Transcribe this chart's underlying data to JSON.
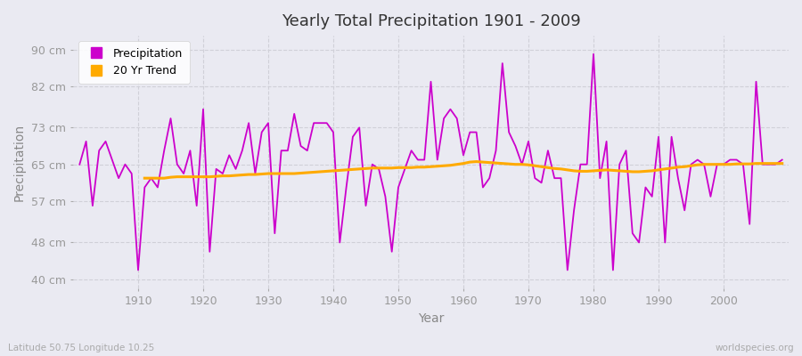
{
  "title": "Yearly Total Precipitation 1901 - 2009",
  "xlabel": "Year",
  "ylabel": "Precipitation",
  "subtitle_left": "Latitude 50.75 Longitude 10.25",
  "subtitle_right": "worldspecies.org",
  "ylim": [
    38,
    93
  ],
  "yticks": [
    40,
    48,
    57,
    65,
    73,
    82,
    90
  ],
  "ytick_labels": [
    "40 cm",
    "48 cm",
    "57 cm",
    "65 cm",
    "73 cm",
    "82 cm",
    "90 cm"
  ],
  "xlim": [
    1900,
    2010
  ],
  "xticks": [
    1910,
    1920,
    1930,
    1940,
    1950,
    1960,
    1970,
    1980,
    1990,
    2000
  ],
  "precip_color": "#cc00cc",
  "trend_color": "#ffaa00",
  "bg_color": "#eaeaf2",
  "fig_color": "#eaeaf2",
  "grid_color": "#d0d0d8",
  "years": [
    1901,
    1902,
    1903,
    1904,
    1905,
    1906,
    1907,
    1908,
    1909,
    1910,
    1911,
    1912,
    1913,
    1914,
    1915,
    1916,
    1917,
    1918,
    1919,
    1920,
    1921,
    1922,
    1923,
    1924,
    1925,
    1926,
    1927,
    1928,
    1929,
    1930,
    1931,
    1932,
    1933,
    1934,
    1935,
    1936,
    1937,
    1938,
    1939,
    1940,
    1941,
    1942,
    1943,
    1944,
    1945,
    1946,
    1947,
    1948,
    1949,
    1950,
    1951,
    1952,
    1953,
    1954,
    1955,
    1956,
    1957,
    1958,
    1959,
    1960,
    1961,
    1962,
    1963,
    1964,
    1965,
    1966,
    1967,
    1968,
    1969,
    1970,
    1971,
    1972,
    1973,
    1974,
    1975,
    1976,
    1977,
    1978,
    1979,
    1980,
    1981,
    1982,
    1983,
    1984,
    1985,
    1986,
    1987,
    1988,
    1989,
    1990,
    1991,
    1992,
    1993,
    1994,
    1995,
    1996,
    1997,
    1998,
    1999,
    2000,
    2001,
    2002,
    2003,
    2004,
    2005,
    2006,
    2007,
    2008,
    2009
  ],
  "precip": [
    65,
    70,
    56,
    68,
    70,
    66,
    62,
    65,
    63,
    42,
    60,
    62,
    60,
    68,
    75,
    65,
    63,
    68,
    56,
    77,
    46,
    64,
    63,
    67,
    64,
    68,
    74,
    63,
    72,
    74,
    50,
    68,
    68,
    76,
    69,
    68,
    74,
    74,
    74,
    72,
    48,
    60,
    71,
    73,
    56,
    65,
    64,
    58,
    46,
    60,
    64,
    68,
    66,
    66,
    83,
    66,
    75,
    77,
    75,
    67,
    72,
    72,
    60,
    62,
    68,
    87,
    72,
    69,
    65,
    70,
    62,
    61,
    68,
    62,
    62,
    42,
    55,
    65,
    65,
    89,
    62,
    70,
    42,
    65,
    68,
    50,
    48,
    60,
    58,
    71,
    48,
    71,
    62,
    55,
    65,
    66,
    65,
    58,
    65,
    65,
    66,
    66,
    65,
    52,
    83,
    65,
    65,
    65,
    66
  ],
  "trend": [
    null,
    null,
    null,
    null,
    null,
    null,
    null,
    null,
    null,
    null,
    62,
    62,
    62,
    62,
    62.2,
    62.3,
    62.3,
    62.3,
    62.3,
    62.3,
    62.3,
    62.4,
    62.5,
    62.5,
    62.6,
    62.7,
    62.8,
    62.8,
    62.9,
    63.0,
    63.0,
    63.0,
    63.0,
    63.0,
    63.1,
    63.2,
    63.3,
    63.4,
    63.5,
    63.6,
    63.7,
    63.8,
    63.9,
    64.0,
    64.1,
    64.2,
    64.2,
    64.2,
    64.2,
    64.3,
    64.3,
    64.3,
    64.4,
    64.4,
    64.5,
    64.6,
    64.7,
    64.8,
    65.0,
    65.2,
    65.5,
    65.6,
    65.5,
    65.4,
    65.3,
    65.2,
    65.1,
    65.0,
    65.0,
    64.9,
    64.7,
    64.5,
    64.3,
    64.1,
    64.0,
    63.8,
    63.6,
    63.5,
    63.5,
    63.6,
    63.7,
    63.8,
    63.7,
    63.6,
    63.5,
    63.4,
    63.4,
    63.5,
    63.6,
    63.8,
    64.0,
    64.2,
    64.4,
    64.5,
    64.7,
    64.9,
    65.0,
    65.0,
    65.0,
    65.0,
    65.0,
    65.1,
    65.1,
    65.1,
    65.2,
    65.2,
    65.2,
    65.2,
    65.2
  ]
}
